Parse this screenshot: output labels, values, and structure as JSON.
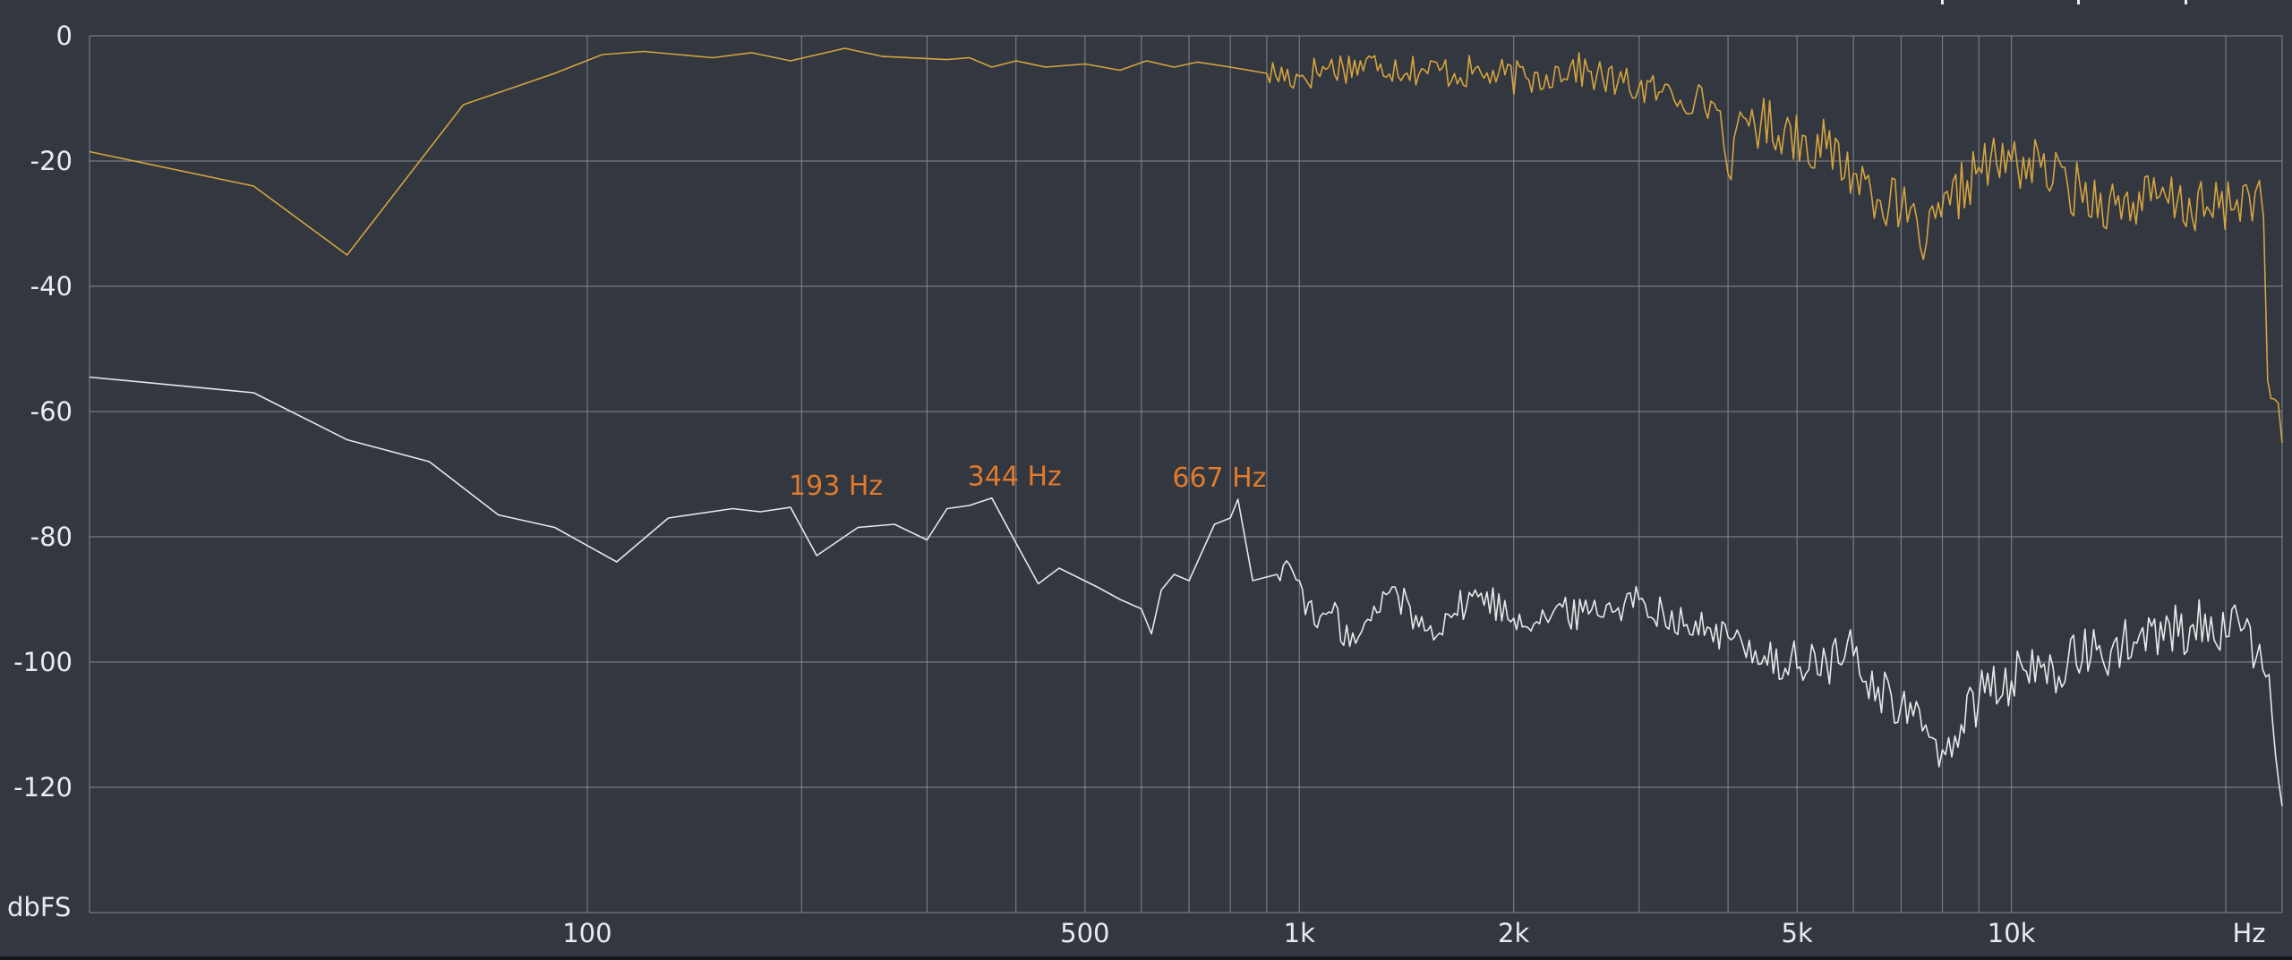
{
  "colors": {
    "background": "#323740",
    "grid": "#8a8f98",
    "text": "#e9ebee",
    "series_1": "#d6a43f",
    "series_2": "#e8e8e8",
    "peak_label": "#e07a2c"
  },
  "chart_data": {
    "type": "line",
    "title": "",
    "xlabel": "",
    "ylabel": "",
    "x_scale": "log",
    "xlim": [
      20,
      24000
    ],
    "ylim": [
      -140,
      0
    ],
    "y_ticks": [
      0,
      -20,
      -40,
      -60,
      -80,
      -100,
      -120
    ],
    "y_tick_labels": [
      "0",
      "-20",
      "-40",
      "-60",
      "-80",
      "-100",
      "-120"
    ],
    "y_unit_label": "dbFS",
    "x_ticks": [
      100,
      500,
      1000,
      2000,
      5000,
      10000
    ],
    "x_tick_labels": [
      "100",
      "500",
      "1k",
      "2k",
      "5k",
      "10k"
    ],
    "x_unit_label": "Hz",
    "x_gridlines": [
      100,
      200,
      300,
      400,
      500,
      600,
      700,
      800,
      900,
      1000,
      2000,
      3000,
      4000,
      5000,
      6000,
      7000,
      8000,
      9000,
      10000,
      20000
    ],
    "grid": true,
    "legend": "none",
    "series": [
      {
        "color": "#d6a43f",
        "points": [
          [
            20,
            -18.5
          ],
          [
            34,
            -24
          ],
          [
            46,
            -35
          ],
          [
            67,
            -11
          ],
          [
            90,
            -6
          ],
          [
            105,
            -3
          ],
          [
            120,
            -2.5
          ],
          [
            150,
            -3.5
          ],
          [
            170,
            -2.7
          ],
          [
            193,
            -4
          ],
          [
            230,
            -2
          ],
          [
            260,
            -3.3
          ],
          [
            320,
            -3.8
          ],
          [
            344,
            -3.5
          ],
          [
            370,
            -5
          ],
          [
            400,
            -4
          ],
          [
            440,
            -5
          ],
          [
            500,
            -4.5
          ],
          [
            560,
            -5.5
          ],
          [
            610,
            -4
          ],
          [
            667,
            -5
          ],
          [
            720,
            -4.2
          ],
          [
            800,
            -5
          ],
          [
            900,
            -6
          ],
          [
            1000,
            -6.5
          ],
          [
            1100,
            -5
          ],
          [
            1300,
            -4.5
          ],
          [
            1500,
            -5.5
          ],
          [
            1800,
            -6
          ],
          [
            2100,
            -7
          ],
          [
            2400,
            -5
          ],
          [
            2800,
            -7.5
          ],
          [
            3200,
            -9
          ],
          [
            3600,
            -10
          ],
          [
            3900,
            -12
          ],
          [
            4000,
            -22
          ],
          [
            4200,
            -13
          ],
          [
            4800,
            -15
          ],
          [
            5500,
            -18
          ],
          [
            6000,
            -22
          ],
          [
            7000,
            -28
          ],
          [
            7600,
            -33
          ],
          [
            8200,
            -27
          ],
          [
            9000,
            -21
          ],
          [
            10000,
            -20
          ],
          [
            11000,
            -21
          ],
          [
            12000,
            -24
          ],
          [
            14000,
            -27
          ],
          [
            16000,
            -26
          ],
          [
            19000,
            -28
          ],
          [
            22000,
            -25
          ],
          [
            22600,
            -29
          ],
          [
            22900,
            -55
          ],
          [
            23400,
            -58
          ],
          [
            24000,
            -65
          ]
        ]
      },
      {
        "color": "#e8e8e8",
        "points": [
          [
            20,
            -54.5
          ],
          [
            34,
            -57
          ],
          [
            46,
            -64.5
          ],
          [
            60,
            -68
          ],
          [
            75,
            -76.5
          ],
          [
            90,
            -78.5
          ],
          [
            110,
            -84
          ],
          [
            130,
            -77
          ],
          [
            160,
            -75.5
          ],
          [
            175,
            -76
          ],
          [
            193,
            -75.3
          ],
          [
            210,
            -83
          ],
          [
            240,
            -78.5
          ],
          [
            270,
            -78
          ],
          [
            300,
            -80.5
          ],
          [
            320,
            -75.5
          ],
          [
            344,
            -75
          ],
          [
            370,
            -73.8
          ],
          [
            400,
            -81
          ],
          [
            430,
            -87.5
          ],
          [
            460,
            -85
          ],
          [
            520,
            -88
          ],
          [
            560,
            -90
          ],
          [
            600,
            -91.5
          ],
          [
            620,
            -95.5
          ],
          [
            640,
            -88.5
          ],
          [
            667,
            -86
          ],
          [
            700,
            -87
          ],
          [
            760,
            -78
          ],
          [
            800,
            -77
          ],
          [
            820,
            -74
          ],
          [
            860,
            -87
          ],
          [
            930,
            -86
          ],
          [
            970,
            -84.5
          ],
          [
            1000,
            -87
          ],
          [
            1050,
            -94
          ],
          [
            1100,
            -92
          ],
          [
            1200,
            -97
          ],
          [
            1350,
            -88
          ],
          [
            1500,
            -95
          ],
          [
            1800,
            -89
          ],
          [
            2000,
            -93
          ],
          [
            2500,
            -92
          ],
          [
            3000,
            -90
          ],
          [
            3500,
            -94
          ],
          [
            4000,
            -96
          ],
          [
            4500,
            -99
          ],
          [
            5000,
            -101
          ],
          [
            5500,
            -100
          ],
          [
            6000,
            -99
          ],
          [
            6500,
            -104
          ],
          [
            7000,
            -107
          ],
          [
            7500,
            -111
          ],
          [
            8000,
            -114
          ],
          [
            8500,
            -110
          ],
          [
            9000,
            -106
          ],
          [
            10000,
            -103
          ],
          [
            12000,
            -100
          ],
          [
            15000,
            -97
          ],
          [
            18000,
            -94
          ],
          [
            21000,
            -95
          ],
          [
            23000,
            -102
          ],
          [
            23500,
            -115
          ],
          [
            24000,
            -123
          ]
        ]
      }
    ],
    "annotations": [
      {
        "text": "193 Hz",
        "x": 193,
        "y": -75.3
      },
      {
        "text": "344 Hz",
        "x": 344,
        "y": -73.8
      },
      {
        "text": "667 Hz",
        "x": 667,
        "y": -74
      }
    ]
  }
}
